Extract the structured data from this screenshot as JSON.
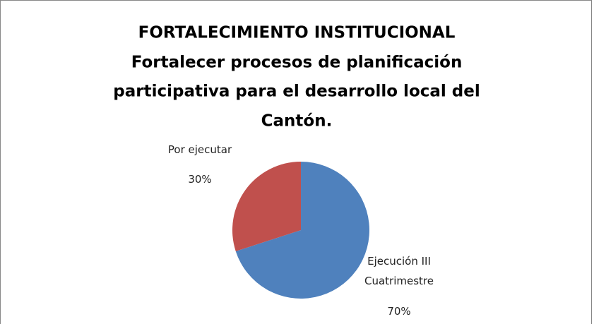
{
  "chart_data": {
    "type": "pie",
    "title": [
      "FORTALECIMIENTO INSTITUCIONAL",
      "Fortalecer procesos de planificación",
      "participativa para el desarrollo local del",
      "Cantón."
    ],
    "categories": [
      "Ejecución III Cuatrimestre",
      "Por ejecutar"
    ],
    "values": [
      70,
      30
    ],
    "value_labels": [
      "70%",
      "30%"
    ],
    "colors": [
      "#4f81bd",
      "#c0504d"
    ]
  }
}
